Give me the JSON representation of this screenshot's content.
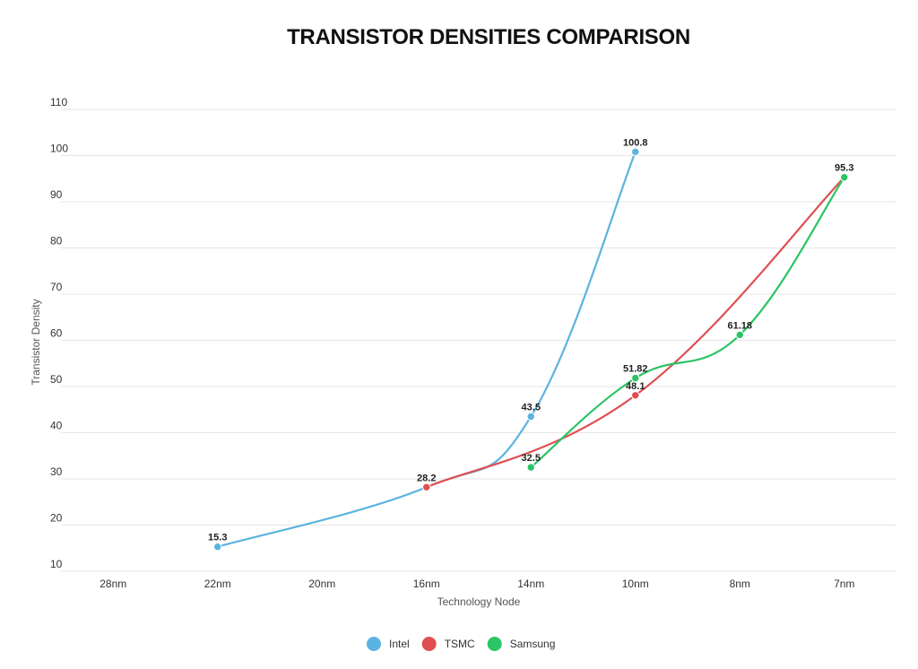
{
  "chart_data": {
    "type": "line",
    "title": "TRANSISTOR DENSITIES COMPARISON",
    "xlabel": "Technology Node",
    "ylabel": "Transistor Density",
    "categories": [
      "28nm",
      "22nm",
      "20nm",
      "16nm",
      "14nm",
      "10nm",
      "8nm",
      "7nm"
    ],
    "ylim": [
      10,
      110
    ],
    "yticks": [
      10,
      20,
      30,
      40,
      50,
      60,
      70,
      80,
      90,
      100,
      110
    ],
    "grid": true,
    "legend_position": "bottom-center",
    "series": [
      {
        "name": "Intel",
        "color": "#5bb3e0",
        "points": [
          {
            "x": "22nm",
            "y": 15.3,
            "label": "15.3"
          },
          {
            "x": "16nm",
            "y": 28.2,
            "label": ""
          },
          {
            "x": "14nm",
            "y": 43.5,
            "label": "43.5"
          },
          {
            "x": "10nm",
            "y": 100.8,
            "label": "100.8"
          }
        ]
      },
      {
        "name": "TSMC",
        "color": "#df4f51",
        "points": [
          {
            "x": "16nm",
            "y": 28.2,
            "label": "28.2"
          },
          {
            "x": "10nm",
            "y": 48.1,
            "label": "48.1"
          },
          {
            "x": "7nm",
            "y": 95.3,
            "label": "95.3"
          }
        ]
      },
      {
        "name": "Samsung",
        "color": "#2bc466",
        "points": [
          {
            "x": "14nm",
            "y": 32.5,
            "label": "32.5"
          },
          {
            "x": "10nm",
            "y": 51.82,
            "label": "51.82"
          },
          {
            "x": "8nm",
            "y": 61.18,
            "label": "61.18"
          },
          {
            "x": "7nm",
            "y": 95.3,
            "label": ""
          }
        ]
      }
    ]
  }
}
